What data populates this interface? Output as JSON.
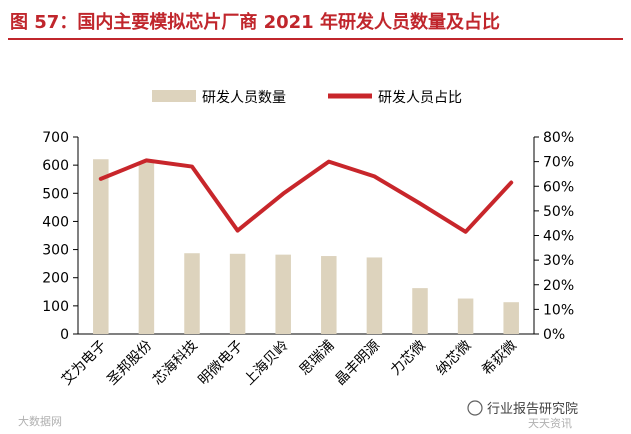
{
  "title": "图 57：国内主要模拟芯片厂商 2021 年研发人员数量及占比",
  "colors": {
    "title": "#c0262c",
    "bar": "#ddd3bd",
    "line": "#c8262b",
    "axis": "#000000"
  },
  "watermarks": {
    "left": "大数据网",
    "right": "行业报告研究院",
    "right_sub": "天天资讯"
  },
  "chart_data": {
    "type": "bar+line",
    "categories": [
      "艾为电子",
      "圣邦股份",
      "芯海科技",
      "明微电子",
      "上海贝岭",
      "思瑞浦",
      "晶丰明源",
      "力芯微",
      "纳芯微",
      "希荻微"
    ],
    "series": [
      {
        "name": "研发人员数量",
        "type": "bar",
        "axis": "left",
        "values": [
          621,
          612,
          287,
          285,
          282,
          277,
          272,
          163,
          126,
          113
        ]
      },
      {
        "name": "研发人员占比",
        "type": "line",
        "axis": "right",
        "values": [
          63.0,
          70.5,
          68.0,
          42.0,
          57.0,
          70.0,
          64.0,
          53.0,
          41.5,
          61.5
        ]
      }
    ],
    "left_axis": {
      "min": 0,
      "max": 700,
      "ticks": [
        0,
        100,
        200,
        300,
        400,
        500,
        600,
        700
      ]
    },
    "right_axis": {
      "min": 0,
      "max": 80,
      "ticks": [
        "0%",
        "10%",
        "20%",
        "30%",
        "40%",
        "50%",
        "60%",
        "70%",
        "80%"
      ]
    },
    "legend_position": "top",
    "grid": false
  }
}
